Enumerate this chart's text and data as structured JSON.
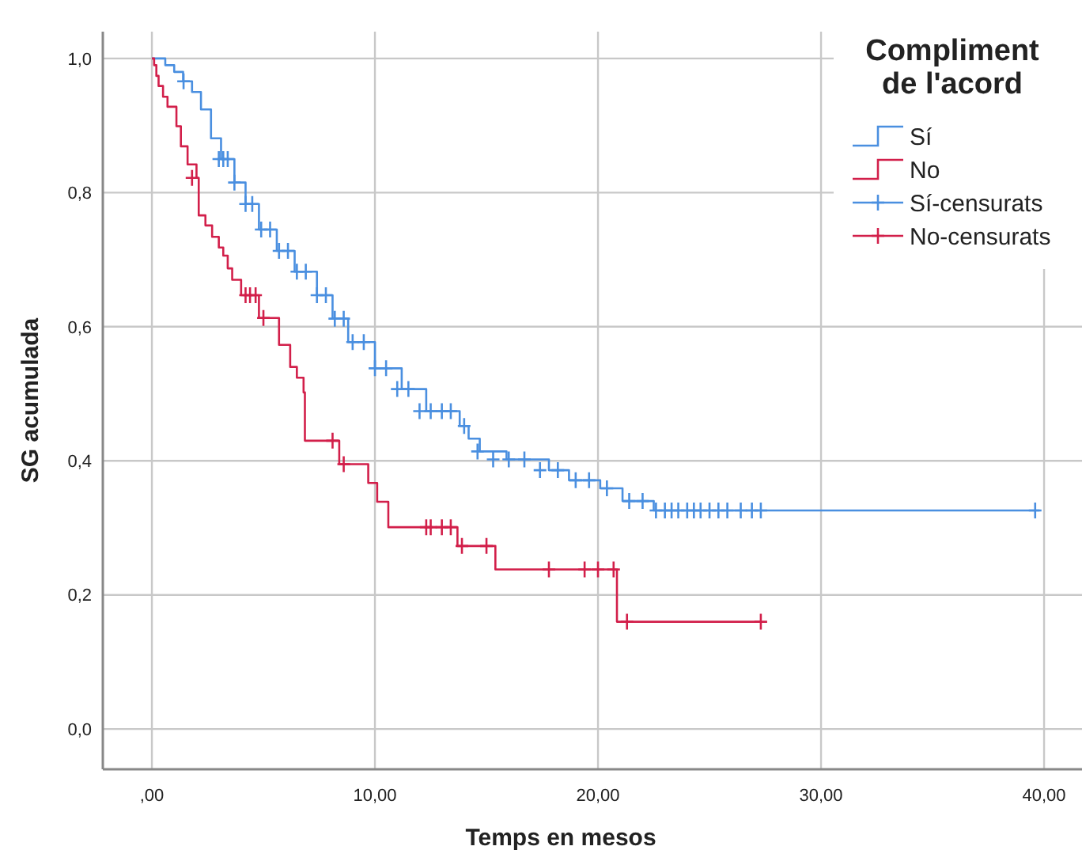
{
  "chart_data": {
    "type": "step",
    "xlabel": "Temps en mesos",
    "ylabel": "SG acumulada",
    "legend_title": "Compliment de l'acord",
    "legend": "top right",
    "grid": true,
    "xlim": [
      -2.2,
      41.7
    ],
    "ylim": [
      -0.06,
      1.04
    ],
    "xticks": [
      {
        "value": 0,
        "label": ",00"
      },
      {
        "value": 10,
        "label": "10,00"
      },
      {
        "value": 20,
        "label": "20,00"
      },
      {
        "value": 30,
        "label": "30,00"
      },
      {
        "value": 40,
        "label": "40,00"
      }
    ],
    "yticks": [
      {
        "value": 0,
        "label": "0,0"
      },
      {
        "value": 0.2,
        "label": "0,2"
      },
      {
        "value": 0.4,
        "label": "0,4"
      },
      {
        "value": 0.6,
        "label": "0,6"
      },
      {
        "value": 0.8,
        "label": "0,8"
      },
      {
        "value": 1,
        "label": "1,0"
      }
    ],
    "series": [
      {
        "name": "Sí",
        "color": "#4a8fe0",
        "x": [
          0,
          0.6,
          1.0,
          1.4,
          1.8,
          2.2,
          2.65,
          3.1,
          3.7,
          4.2,
          4.8,
          5.6,
          6.4,
          7.4,
          8.1,
          8.8,
          10.0,
          11.2,
          12.3,
          13.8,
          14.2,
          14.7,
          15.9,
          17.8,
          18.7,
          20.1,
          21.1,
          22.5,
          39.8
        ],
        "values": [
          1.0,
          0.99,
          0.98,
          0.966,
          0.95,
          0.924,
          0.881,
          0.85,
          0.815,
          0.783,
          0.745,
          0.713,
          0.682,
          0.647,
          0.612,
          0.577,
          0.538,
          0.507,
          0.474,
          0.452,
          0.433,
          0.414,
          0.402,
          0.386,
          0.371,
          0.359,
          0.34,
          0.326,
          0.326
        ]
      },
      {
        "name": "No",
        "color": "#d21f4a",
        "x": [
          0,
          0.1,
          0.2,
          0.3,
          0.5,
          0.7,
          1.1,
          1.3,
          1.6,
          2.0,
          2.1,
          2.4,
          2.7,
          3.0,
          3.2,
          3.4,
          3.6,
          4.0,
          4.8,
          5.7,
          6.2,
          6.5,
          6.8,
          6.86,
          8.4,
          9.7,
          10.1,
          10.6,
          13.7,
          15.4,
          20.85,
          27.3
        ],
        "values": [
          1.0,
          0.99,
          0.974,
          0.959,
          0.943,
          0.928,
          0.899,
          0.869,
          0.842,
          0.822,
          0.766,
          0.751,
          0.734,
          0.718,
          0.706,
          0.687,
          0.67,
          0.647,
          0.613,
          0.573,
          0.54,
          0.524,
          0.502,
          0.43,
          0.395,
          0.367,
          0.339,
          0.301,
          0.273,
          0.238,
          0.16,
          0.16
        ]
      },
      {
        "name": "Sí-censurats",
        "type": "scatter",
        "color": "#4a8fe0",
        "marker": "cross",
        "x": [
          1.42,
          3.0,
          3.2,
          3.4,
          3.7,
          4.2,
          4.5,
          4.9,
          5.3,
          5.7,
          6.1,
          6.5,
          6.9,
          7.4,
          7.8,
          8.2,
          8.6,
          9.0,
          9.5,
          10.0,
          10.5,
          11.0,
          11.5,
          12.0,
          12.5,
          13.0,
          13.4,
          14.0,
          14.6,
          15.3,
          16.0,
          16.7,
          17.4,
          18.2,
          19.0,
          19.6,
          20.4,
          21.4,
          22.0,
          22.6,
          23.0,
          23.3,
          23.6,
          24.0,
          24.3,
          24.6,
          25.0,
          25.4,
          25.8,
          26.4,
          26.9,
          27.3,
          39.6
        ],
        "values": [
          0.966,
          0.85,
          0.85,
          0.85,
          0.815,
          0.783,
          0.783,
          0.745,
          0.745,
          0.713,
          0.713,
          0.682,
          0.682,
          0.647,
          0.647,
          0.612,
          0.612,
          0.577,
          0.577,
          0.538,
          0.538,
          0.507,
          0.507,
          0.474,
          0.474,
          0.474,
          0.474,
          0.452,
          0.414,
          0.402,
          0.402,
          0.402,
          0.386,
          0.386,
          0.371,
          0.371,
          0.359,
          0.34,
          0.34,
          0.326,
          0.326,
          0.326,
          0.326,
          0.326,
          0.326,
          0.326,
          0.326,
          0.326,
          0.326,
          0.326,
          0.326,
          0.326,
          0.326
        ]
      },
      {
        "name": "No-censurats",
        "type": "scatter",
        "color": "#d21f4a",
        "marker": "cross",
        "x": [
          1.8,
          4.2,
          4.4,
          4.65,
          5.0,
          8.1,
          8.6,
          12.3,
          12.5,
          13.0,
          13.4,
          13.9,
          15.0,
          17.8,
          19.4,
          20.0,
          20.7,
          21.3,
          27.3
        ],
        "values": [
          0.822,
          0.647,
          0.647,
          0.647,
          0.613,
          0.43,
          0.395,
          0.301,
          0.301,
          0.301,
          0.301,
          0.273,
          0.273,
          0.238,
          0.238,
          0.238,
          0.238,
          0.16,
          0.16
        ]
      }
    ]
  }
}
